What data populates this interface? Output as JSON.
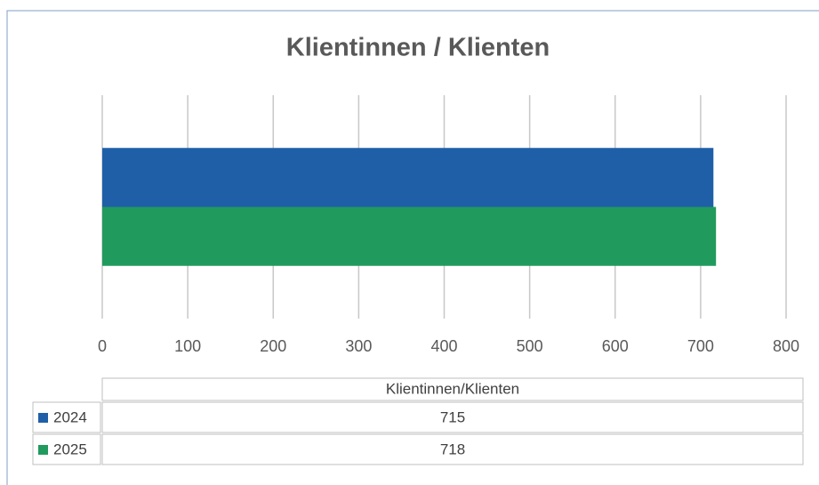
{
  "chart_data": {
    "type": "bar",
    "orientation": "horizontal",
    "title": "Klientinnen / Klienten",
    "categories": [
      "Klientinnen/Klienten"
    ],
    "series": [
      {
        "name": "2024",
        "color": "#1f5fa8",
        "values": [
          715
        ]
      },
      {
        "name": "2025",
        "color": "#219a5e",
        "values": [
          718
        ]
      }
    ],
    "xlim": [
      0,
      800
    ],
    "xticks": [
      0,
      100,
      200,
      300,
      400,
      500,
      600,
      700,
      800
    ],
    "grid": true,
    "data_table": true
  }
}
